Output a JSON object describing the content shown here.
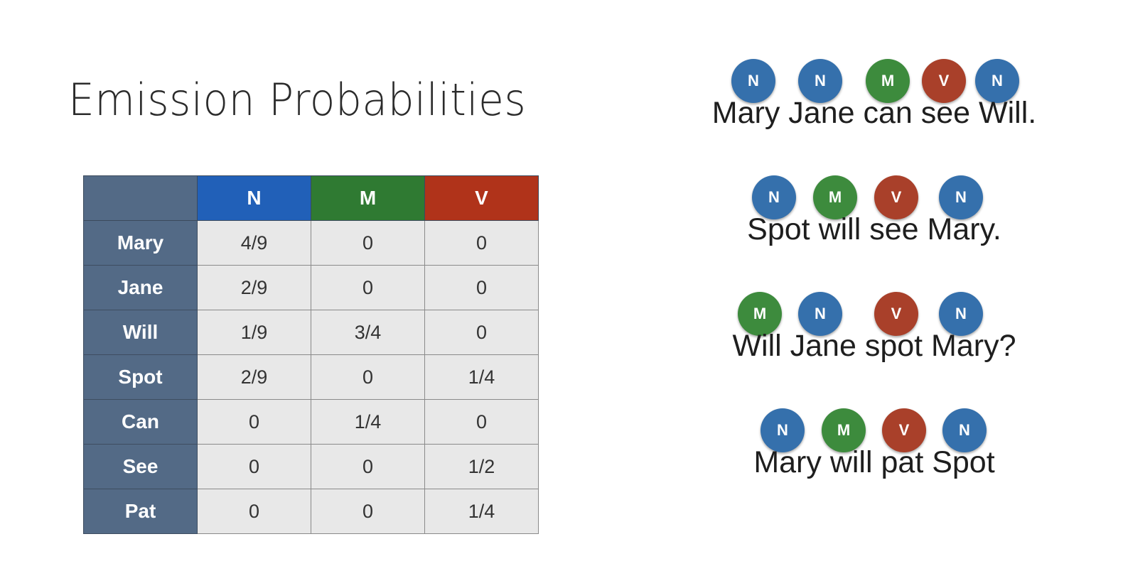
{
  "title": "Emission Probabilities",
  "table": {
    "columns": [
      "N",
      "M",
      "V"
    ],
    "rows": [
      {
        "word": "Mary",
        "values": [
          "4/9",
          "0",
          "0"
        ]
      },
      {
        "word": "Jane",
        "values": [
          "2/9",
          "0",
          "0"
        ]
      },
      {
        "word": "Will",
        "values": [
          "1/9",
          "3/4",
          "0"
        ]
      },
      {
        "word": "Spot",
        "values": [
          "2/9",
          "0",
          "1/4"
        ]
      },
      {
        "word": "Can",
        "values": [
          "0",
          "1/4",
          "0"
        ]
      },
      {
        "word": "See",
        "values": [
          "0",
          "0",
          "1/2"
        ]
      },
      {
        "word": "Pat",
        "values": [
          "0",
          "0",
          "1/4"
        ]
      }
    ]
  },
  "sentences": [
    {
      "text": "Mary Jane can see Will.",
      "tags": [
        "N",
        "N",
        "M",
        "V",
        "N"
      ]
    },
    {
      "text": "Spot will see Mary.",
      "tags": [
        "N",
        "M",
        "V",
        "N"
      ]
    },
    {
      "text": "Will Jane spot Mary?",
      "tags": [
        "M",
        "N",
        "V",
        "N"
      ]
    },
    {
      "text": "Mary will pat Spot",
      "tags": [
        "N",
        "M",
        "V",
        "N"
      ]
    }
  ],
  "colors": {
    "N": "#3570ac",
    "M": "#3d8b3d",
    "V": "#a9402a",
    "header_N": "#2160b8",
    "header_M": "#2f7a32",
    "header_V": "#b0331a",
    "row_header": "#536a86"
  }
}
